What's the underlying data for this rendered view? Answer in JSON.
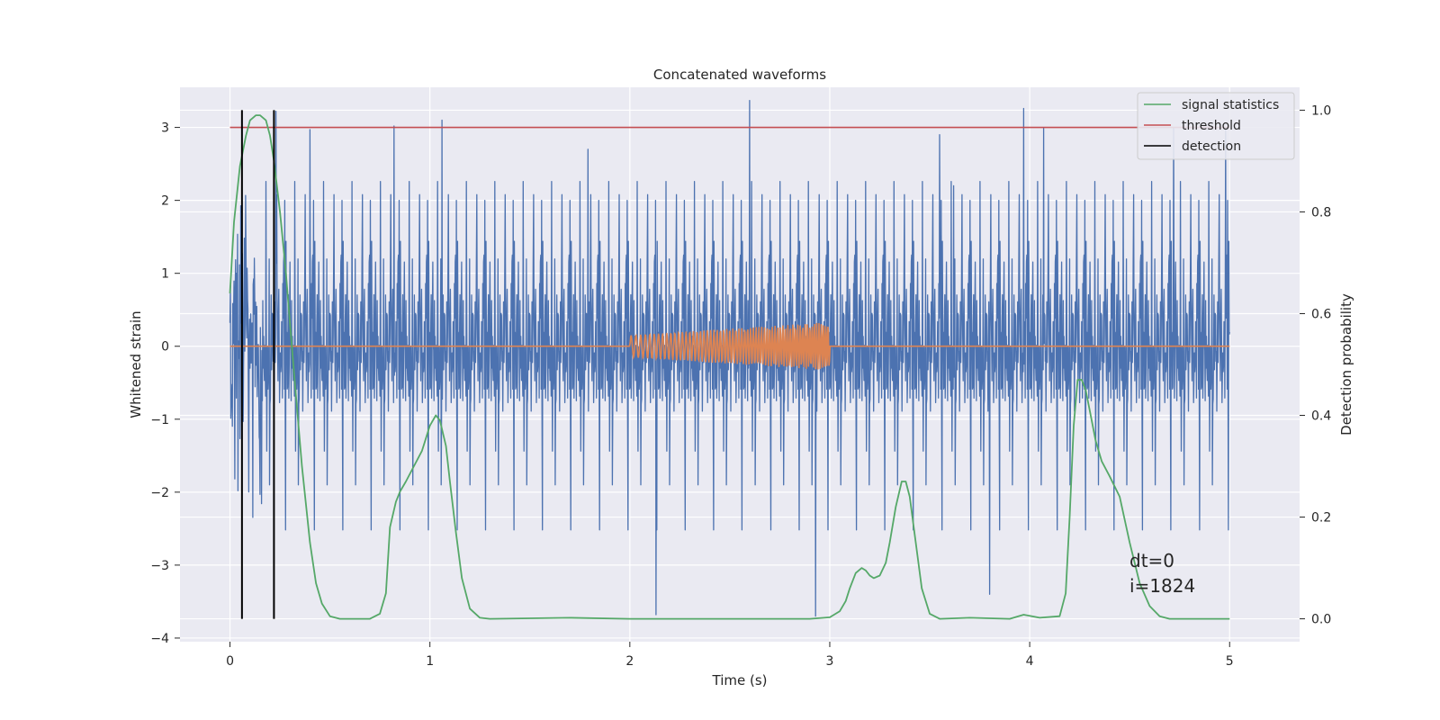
{
  "chart_data": {
    "type": "line",
    "title": "Concatenated waveforms",
    "xlabel": "Time (s)",
    "ylabel": "Whitened strain",
    "y2label": "Detection probability",
    "xlim": [
      -0.25,
      5.35
    ],
    "ylim": [
      -4.05,
      3.55
    ],
    "y2lim": [
      -0.045,
      1.045
    ],
    "xticks": [
      0,
      1,
      2,
      3,
      4,
      5
    ],
    "yticks": [
      -4,
      -3,
      -2,
      -1,
      0,
      1,
      2,
      3
    ],
    "y2ticks": [
      0.0,
      0.2,
      0.4,
      0.6,
      0.8,
      1.0
    ],
    "xtick_labels": [
      "0",
      "1",
      "2",
      "3",
      "4",
      "5"
    ],
    "ytick_labels": [
      "−4",
      "−3",
      "−2",
      "−1",
      "0",
      "1",
      "2",
      "3"
    ],
    "y2tick_labels": [
      "0.0",
      "0.2",
      "0.4",
      "0.6",
      "0.8",
      "1.0"
    ],
    "grid": true,
    "legend_position": "top-right",
    "colors": {
      "strain": "#4c72b0",
      "waveform": "#dd8452",
      "signal_statistics": "#55a868",
      "threshold": "#c44e52",
      "detection": "#000000",
      "background": "#eaeaf2",
      "grid": "#ffffff"
    },
    "series": [
      {
        "name": "signal statistics",
        "axis": "right",
        "x": [
          0.0,
          0.02,
          0.05,
          0.08,
          0.1,
          0.13,
          0.15,
          0.18,
          0.2,
          0.22,
          0.25,
          0.28,
          0.3,
          0.33,
          0.36,
          0.4,
          0.43,
          0.46,
          0.5,
          0.55,
          0.6,
          0.7,
          0.75,
          0.78,
          0.8,
          0.83,
          0.85,
          0.88,
          0.92,
          0.96,
          1.0,
          1.03,
          1.05,
          1.08,
          1.1,
          1.13,
          1.16,
          1.2,
          1.25,
          1.3,
          1.7,
          2.0,
          2.5,
          2.9,
          3.0,
          3.05,
          3.08,
          3.1,
          3.13,
          3.16,
          3.18,
          3.2,
          3.22,
          3.25,
          3.28,
          3.3,
          3.33,
          3.36,
          3.38,
          3.4,
          3.43,
          3.46,
          3.5,
          3.55,
          3.7,
          3.9,
          3.97,
          4.05,
          4.15,
          4.18,
          4.2,
          4.22,
          4.24,
          4.26,
          4.28,
          4.3,
          4.33,
          4.36,
          4.4,
          4.45,
          4.5,
          4.55,
          4.6,
          4.65,
          4.7,
          5.0
        ],
        "y": [
          0.64,
          0.78,
          0.89,
          0.95,
          0.98,
          0.99,
          0.99,
          0.98,
          0.95,
          0.9,
          0.8,
          0.68,
          0.58,
          0.44,
          0.3,
          0.15,
          0.07,
          0.03,
          0.005,
          0.0,
          0.0,
          0.0,
          0.01,
          0.05,
          0.18,
          0.23,
          0.25,
          0.27,
          0.3,
          0.33,
          0.38,
          0.4,
          0.39,
          0.34,
          0.27,
          0.17,
          0.08,
          0.02,
          0.002,
          0.0,
          0.002,
          0.0,
          0.0,
          0.0,
          0.003,
          0.015,
          0.035,
          0.06,
          0.09,
          0.1,
          0.095,
          0.085,
          0.08,
          0.085,
          0.11,
          0.15,
          0.22,
          0.27,
          0.27,
          0.24,
          0.15,
          0.06,
          0.01,
          0.0,
          0.002,
          0.0,
          0.008,
          0.002,
          0.005,
          0.05,
          0.2,
          0.38,
          0.47,
          0.47,
          0.45,
          0.41,
          0.35,
          0.31,
          0.28,
          0.24,
          0.15,
          0.07,
          0.025,
          0.005,
          0.0,
          0.0
        ]
      },
      {
        "name": "threshold",
        "axis": "left",
        "x": [
          0,
          5
        ],
        "y": [
          3,
          3
        ]
      },
      {
        "name": "detection",
        "axis": "right",
        "x": [
          0.06,
          0.22
        ],
        "y_span": [
          0.0,
          1.0
        ]
      }
    ],
    "strain": {
      "name": "",
      "axis": "left",
      "x_range": [
        0,
        5
      ],
      "peaks_x": [
        0.23,
        0.4,
        0.82,
        1.06,
        1.79,
        2.13,
        2.6,
        2.93,
        3.55,
        3.62,
        3.8,
        3.97,
        4.07,
        4.72,
        4.98
      ],
      "peaks_y": [
        3.22,
        2.97,
        3.02,
        3.1,
        2.7,
        -3.68,
        3.37,
        -3.7,
        2.9,
        2.2,
        -3.4,
        3.26,
        3.0,
        3.0,
        3.0
      ],
      "envelope": [
        -2.7,
        2.4
      ]
    },
    "waveform": {
      "name": "",
      "axis": "left",
      "x_range": [
        0,
        5
      ],
      "chirp_start": 2.0,
      "chirp_end": 3.0,
      "amplitude_start": 0.15,
      "amplitude_end": 0.33
    },
    "annotations": [
      "dt=0",
      "i=1824"
    ]
  }
}
